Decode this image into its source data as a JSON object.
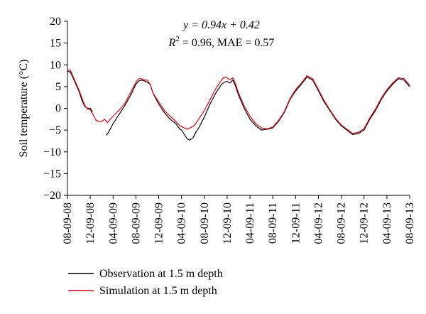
{
  "chart_data": {
    "type": "line",
    "title": "",
    "ylabel": "Soil temperature (°C)",
    "xlabel": "",
    "ylim": [
      -20,
      20
    ],
    "yticks": [
      20,
      15,
      10,
      5,
      0,
      -5,
      -10,
      -15,
      -20
    ],
    "yticks_labels": [
      "20",
      "15",
      "10",
      "5",
      "0",
      "−5",
      "−10",
      "−15",
      "−20"
    ],
    "xticks": [
      "08-09-08",
      "12-09-08",
      "04-09-09",
      "08-09-09",
      "12-09-09",
      "04-09-10",
      "08-09-10",
      "12-09-10",
      "04-09-11",
      "08-09-11",
      "12-09-11",
      "04-09-12",
      "08-09-12",
      "12-09-12",
      "04-09-13",
      "08-09-13"
    ],
    "x_unit_months": "months since 08-09-08",
    "grid": false,
    "legend_position": "bottom-left",
    "annotation": {
      "equation": "y = 0.94x + 0.42",
      "r2_label": "R",
      "r2_sup": "2",
      "r2_rest": " = 0.96, MAE = 0.57"
    },
    "series": [
      {
        "name": "Observation at 1.5 m depth",
        "color": "#000000",
        "segments": [
          [
            [
              0,
              8.5
            ],
            [
              0.5,
              8.4
            ],
            [
              1,
              7
            ],
            [
              1.5,
              5.5
            ],
            [
              2,
              4
            ],
            [
              2.5,
              2
            ],
            [
              3,
              0.5
            ],
            [
              3.5,
              0
            ],
            [
              4,
              0
            ],
            [
              4.4,
              -0.8
            ]
          ],
          [
            [
              6.8,
              -6.2
            ],
            [
              7.2,
              -5.5
            ],
            [
              8,
              -3.5
            ],
            [
              9,
              -1.5
            ],
            [
              10,
              0.5
            ],
            [
              11,
              2.8
            ],
            [
              12,
              5.5
            ],
            [
              12.5,
              6.3
            ],
            [
              13,
              6.5
            ],
            [
              13.5,
              6.3
            ],
            [
              14,
              6
            ],
            [
              14.5,
              5.5
            ],
            [
              15,
              3.5
            ],
            [
              16,
              1
            ],
            [
              17,
              -1
            ],
            [
              18,
              -2.5
            ],
            [
              19,
              -3.5
            ],
            [
              19.7,
              -4.8
            ],
            [
              20,
              -5
            ],
            [
              20.5,
              -6
            ],
            [
              21,
              -7
            ],
            [
              21.4,
              -7.3
            ],
            [
              22,
              -6.8
            ],
            [
              22.5,
              -5.5
            ],
            [
              23,
              -4.5
            ],
            [
              24,
              -2
            ],
            [
              25,
              1
            ],
            [
              26,
              3.5
            ],
            [
              27,
              5.5
            ],
            [
              27.5,
              6
            ],
            [
              28,
              6.2
            ],
            [
              28.5,
              5.8
            ],
            [
              29,
              6.5
            ],
            [
              29.5,
              5
            ],
            [
              30,
              3
            ],
            [
              31,
              0
            ],
            [
              32,
              -2.5
            ],
            [
              33,
              -4
            ],
            [
              34,
              -5
            ],
            [
              35,
              -4.8
            ],
            [
              36,
              -4.5
            ],
            [
              37,
              -3
            ],
            [
              38,
              -1
            ],
            [
              39,
              2
            ],
            [
              40,
              4
            ],
            [
              41,
              5.5
            ],
            [
              42,
              7.2
            ],
            [
              43,
              6.5
            ],
            [
              44,
              4
            ],
            [
              45,
              1.5
            ],
            [
              46,
              -0.5
            ],
            [
              47,
              -2.5
            ],
            [
              48,
              -4
            ],
            [
              49,
              -5
            ],
            [
              50,
              -6
            ],
            [
              51,
              -5.8
            ],
            [
              52,
              -5
            ],
            [
              53,
              -2.5
            ],
            [
              54,
              -0.5
            ],
            [
              55,
              2
            ],
            [
              56,
              4
            ],
            [
              57,
              5.5
            ],
            [
              58,
              6.8
            ],
            [
              59,
              6.5
            ],
            [
              60,
              5
            ],
            [
              61,
              3
            ],
            [
              62,
              0.5
            ],
            [
              63,
              -1
            ],
            [
              64,
              -2.5
            ],
            [
              65,
              -4
            ],
            [
              66,
              -5
            ],
            [
              67,
              -5.8
            ],
            [
              68,
              -5
            ],
            [
              69,
              -4
            ],
            [
              70,
              -2.5
            ],
            [
              71,
              -1
            ],
            [
              72,
              1
            ],
            [
              73,
              3
            ],
            [
              74,
              4.5
            ],
            [
              75,
              6
            ],
            [
              76,
              6.3
            ]
          ]
        ]
      },
      {
        "name": "Simulation at 1.5 m depth",
        "color": "#e8000b",
        "segments": [
          [
            [
              0,
              8.8
            ],
            [
              0.5,
              8.8
            ],
            [
              1,
              7.3
            ],
            [
              1.5,
              5.8
            ],
            [
              2,
              4.3
            ],
            [
              2.5,
              2.5
            ],
            [
              3,
              0.8
            ],
            [
              3.5,
              -0.2
            ],
            [
              4,
              -0.3
            ],
            [
              4.5,
              -1.5
            ],
            [
              5,
              -2.7
            ],
            [
              5.5,
              -3
            ],
            [
              6,
              -3
            ],
            [
              6.5,
              -2.5
            ],
            [
              7,
              -3.3
            ],
            [
              7.5,
              -2.5
            ],
            [
              8,
              -1.8
            ],
            [
              9,
              -0.5
            ],
            [
              10,
              1
            ],
            [
              11,
              3.5
            ],
            [
              12,
              6
            ],
            [
              12.5,
              6.8
            ],
            [
              13,
              6.8
            ],
            [
              13.5,
              6.5
            ],
            [
              14,
              6.5
            ],
            [
              14.5,
              5.5
            ],
            [
              15,
              3.5
            ],
            [
              16,
              1.5
            ],
            [
              17,
              -0.5
            ],
            [
              18,
              -1.8
            ],
            [
              19,
              -3
            ],
            [
              19.7,
              -4
            ],
            [
              20,
              -4.2
            ],
            [
              20.5,
              -4.5
            ],
            [
              21,
              -4.8
            ],
            [
              21.5,
              -4.5
            ],
            [
              22,
              -4.2
            ],
            [
              22.5,
              -3.5
            ],
            [
              23,
              -2.5
            ],
            [
              24,
              -0.5
            ],
            [
              25,
              2
            ],
            [
              26,
              4.5
            ],
            [
              27,
              6.5
            ],
            [
              27.5,
              7.2
            ],
            [
              28,
              7
            ],
            [
              28.5,
              6.5
            ],
            [
              29,
              7
            ],
            [
              29.5,
              5.5
            ],
            [
              30,
              3.5
            ],
            [
              31,
              0.5
            ],
            [
              32,
              -1.8
            ],
            [
              33,
              -3.5
            ],
            [
              34,
              -4.5
            ],
            [
              35,
              -4.7
            ],
            [
              36,
              -4.3
            ],
            [
              37,
              -2.8
            ],
            [
              38,
              -0.8
            ],
            [
              39,
              2.2
            ],
            [
              40,
              4.3
            ],
            [
              41,
              5.8
            ],
            [
              42,
              7.5
            ],
            [
              43,
              6.8
            ],
            [
              44,
              4.3
            ],
            [
              45,
              1.8
            ],
            [
              46,
              -0.3
            ],
            [
              47,
              -2.3
            ],
            [
              48,
              -3.8
            ],
            [
              49,
              -4.8
            ],
            [
              50,
              -5.8
            ],
            [
              51,
              -5.5
            ],
            [
              52,
              -4.7
            ],
            [
              53,
              -2.2
            ],
            [
              54,
              -0.2
            ],
            [
              55,
              2.3
            ],
            [
              56,
              4.3
            ],
            [
              57,
              5.8
            ],
            [
              58,
              7
            ],
            [
              59,
              6.8
            ],
            [
              60,
              5.3
            ],
            [
              61,
              3.2
            ],
            [
              62,
              0.8
            ],
            [
              63,
              -0.8
            ],
            [
              64,
              -2.3
            ],
            [
              65,
              -3.8
            ],
            [
              66,
              -4.8
            ],
            [
              67,
              -5.5
            ],
            [
              68,
              -4.8
            ],
            [
              69,
              -3.8
            ],
            [
              70,
              -2.3
            ],
            [
              71,
              -0.8
            ],
            [
              72,
              1.2
            ],
            [
              73,
              3.2
            ],
            [
              74,
              4.8
            ],
            [
              75,
              6.2
            ],
            [
              76,
              6.4
            ]
          ]
        ]
      }
    ]
  }
}
